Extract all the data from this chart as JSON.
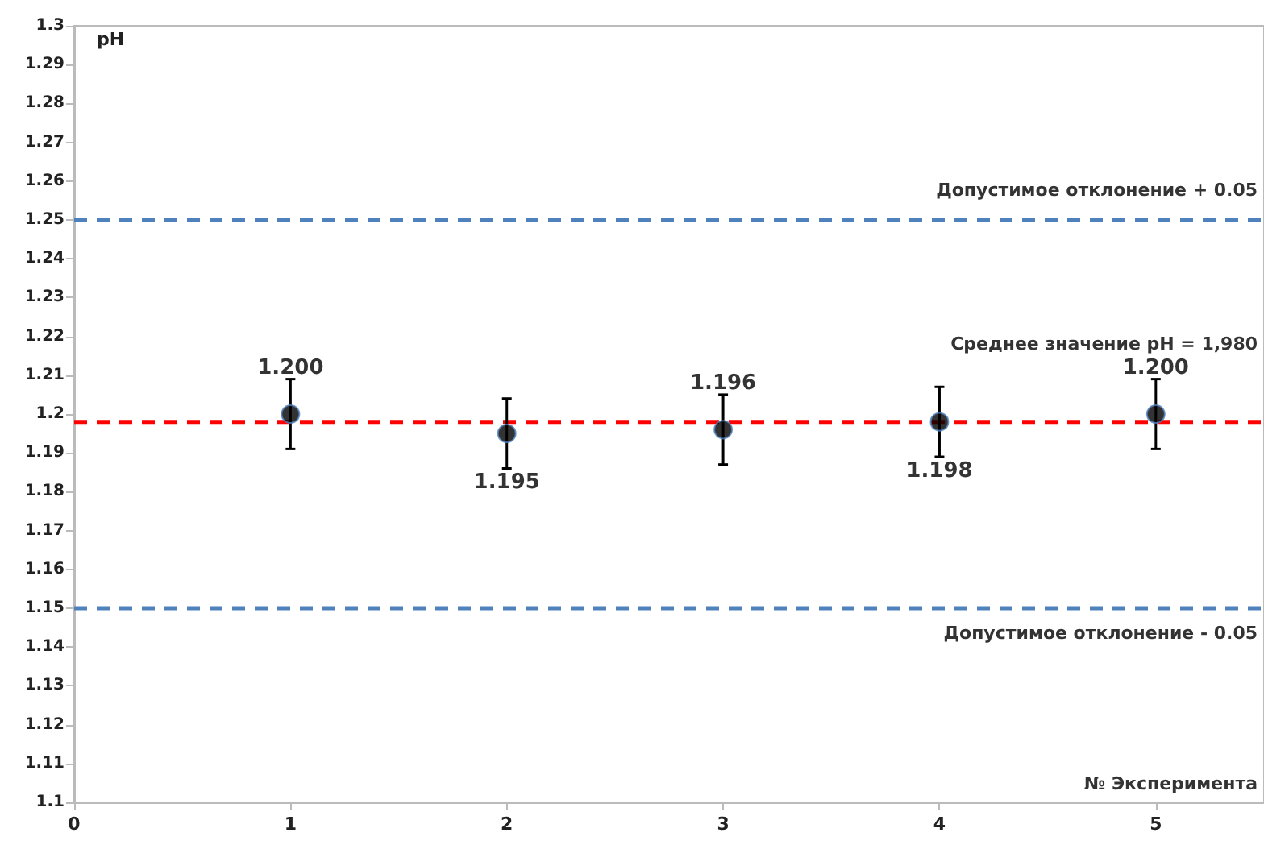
{
  "chart_data": {
    "type": "scatter",
    "xlabel": "№ Эксперимента",
    "ylabel": "pH",
    "x": [
      1,
      2,
      3,
      4,
      5
    ],
    "series": [
      {
        "color": "#000000",
        "values": [
          1.2,
          1.195,
          1.196,
          1.198,
          1.2
        ],
        "errors": [
          0.009,
          0.009,
          0.009,
          0.009,
          0.009
        ],
        "value_labels": [
          "1.200",
          "1.195",
          "1.196",
          "1.198",
          "1.200"
        ]
      }
    ],
    "xlim": [
      0,
      5.5
    ],
    "xticks": [
      0,
      1,
      2,
      3,
      4,
      5
    ],
    "ylim": [
      1.1,
      1.3
    ],
    "yticks": [
      1.1,
      1.11,
      1.12,
      1.13,
      1.14,
      1.15,
      1.16,
      1.17,
      1.18,
      1.19,
      1.2,
      1.21,
      1.22,
      1.23,
      1.24,
      1.25,
      1.26,
      1.27,
      1.28,
      1.29,
      1.3
    ],
    "ref_lines": [
      {
        "axis": "y",
        "value": 1.25,
        "label": "Допустимое отклонение + 0.05",
        "color": "#4f81bd",
        "line_style": "dashed"
      },
      {
        "axis": "y",
        "value": 1.198,
        "color": "#ff0000",
        "line_style": "dashed"
      },
      {
        "axis": "y",
        "value": 1.15,
        "label": "Допустимое отклонение - 0.05",
        "color": "#4f81bd",
        "line_style": "dashed"
      }
    ],
    "annotations": [
      "Среднее значение pH = 1,980"
    ],
    "marker": "circle",
    "grid": false
  }
}
